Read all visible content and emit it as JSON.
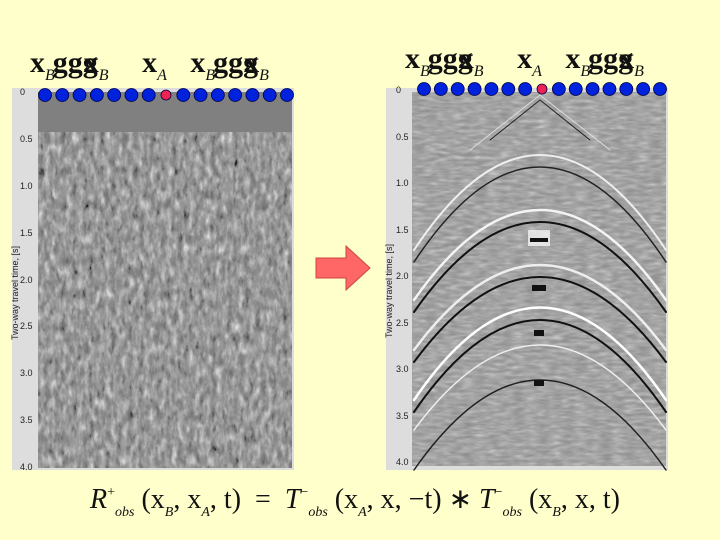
{
  "labels": {
    "left": {
      "xb1": "x",
      "xb1_sub": "B",
      "dots1": "ggg",
      "xb2": "x",
      "xb2_sub": "B",
      "xa": "x",
      "xa_sub": "A",
      "xb3": "x",
      "xb3_sub": "B",
      "dots2": "ggg",
      "xb4": "x",
      "xb4_sub": "B"
    },
    "right": {
      "xb1": "x",
      "xb1_sub": "B",
      "dots1": "ggg",
      "xb2": "x",
      "xb2_sub": "B",
      "xa": "x",
      "xa_sub": "A",
      "xb3": "x",
      "xb3_sub": "B",
      "dots2": "ggg",
      "xb4": "x",
      "xb4_sub": "B"
    }
  },
  "ylabel": "Two-way travel time, [s]",
  "ticks": [
    "0",
    "0.5",
    "1.0",
    "1.5",
    "2.0",
    "2.5",
    "3.0",
    "3.5",
    "4.0"
  ],
  "receivers": {
    "count": 15,
    "source_index": 7,
    "receiver_color": "#0022dd",
    "source_color": "#ee2255"
  },
  "arrow_color": "#ff6666",
  "equation": {
    "lhs": "R",
    "lhs_sup": "+",
    "lhs_sub": "obs",
    "lhs_args": "(x",
    "lhs_sub_b": "B",
    "lhs_comma": ", x",
    "lhs_sub_a": "A",
    "lhs_t": ", t)",
    "eq": "=",
    "t1": "T",
    "t1_sup": "−",
    "t1_sub": "obs",
    "t1_args": "(x",
    "t1_sub_a": "A",
    "t1_rest": ", x, −t)",
    "star": "∗",
    "t2": "T",
    "t2_sup": "−",
    "t2_sub": "obs",
    "t2_args": "(x",
    "t2_sub_b": "B",
    "t2_rest": ", x, t)"
  }
}
